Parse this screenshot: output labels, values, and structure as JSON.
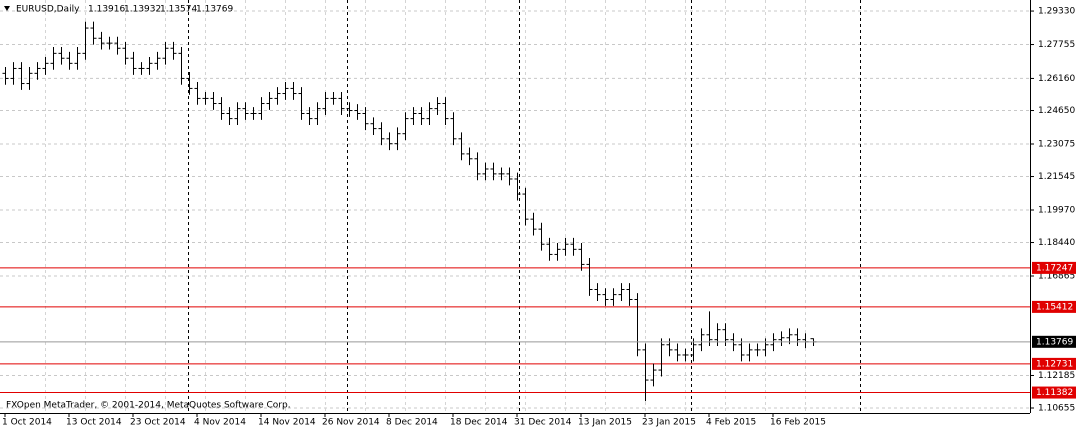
{
  "chart_data": {
    "type": "ohlc",
    "footer": "FXOpen MetaTrader, © 2001-2014, MetaQuotes Software Corp.",
    "categories": [
      "1 Oct 2014",
      null,
      null,
      null,
      null,
      null,
      null,
      null,
      "13 Oct 2014",
      null,
      null,
      null,
      null,
      null,
      null,
      null,
      "23 Oct 2014",
      null,
      null,
      null,
      null,
      null,
      null,
      null,
      "4 Nov 2014",
      null,
      null,
      null,
      null,
      null,
      null,
      null,
      "14 Nov 2014",
      null,
      null,
      null,
      null,
      null,
      null,
      null,
      "26 Nov 2014",
      null,
      null,
      null,
      null,
      null,
      null,
      null,
      "8 Dec 2014",
      null,
      null,
      null,
      null,
      null,
      null,
      null,
      "18 Dec 2014",
      null,
      null,
      null,
      null,
      null,
      null,
      null,
      "31 Dec 2014",
      null,
      null,
      null,
      null,
      null,
      null,
      null,
      "13 Jan 2015",
      null,
      null,
      null,
      null,
      null,
      null,
      null,
      "23 Jan 2015",
      null,
      null,
      null,
      null,
      null,
      null,
      null,
      "4 Feb 2015",
      null,
      null,
      null,
      null,
      null,
      null,
      null,
      "16 Feb 2015",
      null,
      null,
      null,
      null,
      null
    ],
    "series": [
      {
        "name": "EURUSD,Daily",
        "color": "#000000",
        "open": [
          1.264,
          1.2616,
          1.2663,
          1.2592,
          1.264,
          1.2663,
          1.2687,
          1.2734,
          1.2711,
          1.2687,
          1.2734,
          1.2853,
          1.2805,
          1.2782,
          1.2782,
          1.2758,
          1.2711,
          1.2663,
          1.2663,
          1.2687,
          1.2711,
          1.2758,
          1.2734,
          1.2616,
          1.2569,
          1.2522,
          1.2522,
          1.2498,
          1.2451,
          1.2427,
          1.2474,
          1.2451,
          1.2451,
          1.2498,
          1.2522,
          1.2545,
          1.2569,
          1.2545,
          1.2451,
          1.2427,
          1.2474,
          1.2522,
          1.2522,
          1.2474,
          1.2465,
          1.2451,
          1.2403,
          1.238,
          1.2332,
          1.2309,
          1.2356,
          1.2427,
          1.2451,
          1.2427,
          1.2474,
          1.2498,
          1.2427,
          1.2332,
          1.2261,
          1.2238,
          1.2167,
          1.219,
          1.2167,
          1.2167,
          1.2143,
          1.2072,
          1.1954,
          1.1907,
          1.1836,
          1.1788,
          1.1812,
          1.1836,
          1.1812,
          1.1741,
          1.1623,
          1.1599,
          1.1576,
          1.1599,
          1.1623,
          1.1576,
          1.1339,
          1.1197,
          1.1244,
          1.1363,
          1.1339,
          1.1315,
          1.1315,
          1.1363,
          1.141,
          1.1387,
          1.1434,
          1.1387,
          1.1363,
          1.1315,
          1.1339,
          1.1339,
          1.1363,
          1.1387,
          1.1396,
          1.141,
          1.1387,
          1.13916
        ],
        "high": [
          1.267,
          1.2693,
          1.2693,
          1.267,
          1.2693,
          1.2717,
          1.2764,
          1.2764,
          1.2741,
          1.2764,
          1.2883,
          1.2883,
          1.2835,
          1.2812,
          1.2812,
          1.2788,
          1.2741,
          1.2693,
          1.2717,
          1.2741,
          1.2788,
          1.2788,
          1.2764,
          1.2646,
          1.2599,
          1.2552,
          1.2552,
          1.2528,
          1.2481,
          1.2504,
          1.2504,
          1.2481,
          1.2528,
          1.2552,
          1.2575,
          1.2599,
          1.2599,
          1.2575,
          1.2481,
          1.2504,
          1.2552,
          1.2552,
          1.2552,
          1.2504,
          1.2495,
          1.2481,
          1.2433,
          1.241,
          1.2362,
          1.2386,
          1.2457,
          1.2481,
          1.2481,
          1.2504,
          1.2528,
          1.2528,
          1.2457,
          1.2362,
          1.2291,
          1.2268,
          1.222,
          1.222,
          1.2197,
          1.2197,
          1.2173,
          1.2102,
          1.1984,
          1.1937,
          1.1866,
          1.1842,
          1.1866,
          1.1866,
          1.1842,
          1.1771,
          1.1653,
          1.1629,
          1.1629,
          1.1653,
          1.1653,
          1.1606,
          1.1369,
          1.1274,
          1.1393,
          1.1393,
          1.1369,
          1.1345,
          1.1393,
          1.144,
          1.152,
          1.1464,
          1.1464,
          1.1417,
          1.1393,
          1.1369,
          1.1369,
          1.1393,
          1.1417,
          1.1426,
          1.144,
          1.144,
          1.1417,
          1.13932
        ],
        "low": [
          1.2586,
          1.2586,
          1.2562,
          1.2562,
          1.261,
          1.2633,
          1.2657,
          1.2681,
          1.2657,
          1.2657,
          1.2704,
          1.2775,
          1.2752,
          1.2752,
          1.2728,
          1.2681,
          1.2633,
          1.2633,
          1.2633,
          1.2657,
          1.2681,
          1.2704,
          1.2586,
          1.2539,
          1.2492,
          1.2492,
          1.2468,
          1.2421,
          1.2397,
          1.2397,
          1.2421,
          1.2421,
          1.2421,
          1.2468,
          1.2492,
          1.2515,
          1.2515,
          1.2421,
          1.2397,
          1.2397,
          1.2444,
          1.2492,
          1.2444,
          1.2435,
          1.2421,
          1.2373,
          1.235,
          1.2302,
          1.2279,
          1.2279,
          1.2326,
          1.2397,
          1.2397,
          1.2397,
          1.2444,
          1.2397,
          1.2302,
          1.2231,
          1.2208,
          1.2137,
          1.2137,
          1.2137,
          1.2137,
          1.2113,
          1.2042,
          1.1924,
          1.1877,
          1.1806,
          1.1758,
          1.1758,
          1.1782,
          1.1782,
          1.1711,
          1.1593,
          1.1569,
          1.1546,
          1.1546,
          1.1569,
          1.1546,
          1.1309,
          1.1098,
          1.1167,
          1.1214,
          1.1309,
          1.1285,
          1.1285,
          1.1285,
          1.1333,
          1.1357,
          1.1357,
          1.1357,
          1.1333,
          1.1285,
          1.1285,
          1.1309,
          1.1309,
          1.1333,
          1.1357,
          1.1366,
          1.1357,
          1.1347,
          1.13574
        ],
        "close": [
          1.2616,
          1.2663,
          1.2592,
          1.264,
          1.2663,
          1.2687,
          1.2734,
          1.2711,
          1.2687,
          1.2734,
          1.2853,
          1.2805,
          1.2782,
          1.2782,
          1.2758,
          1.2711,
          1.2663,
          1.2663,
          1.2687,
          1.2711,
          1.2758,
          1.2734,
          1.2616,
          1.2569,
          1.2522,
          1.2522,
          1.2498,
          1.2451,
          1.2427,
          1.2474,
          1.2451,
          1.2451,
          1.2498,
          1.2522,
          1.2545,
          1.2569,
          1.2545,
          1.2451,
          1.2427,
          1.2474,
          1.2522,
          1.2522,
          1.2474,
          1.2465,
          1.2451,
          1.2403,
          1.238,
          1.2332,
          1.2309,
          1.2356,
          1.2427,
          1.2451,
          1.2427,
          1.2474,
          1.2498,
          1.2427,
          1.2332,
          1.2261,
          1.2238,
          1.2167,
          1.219,
          1.2167,
          1.2167,
          1.2143,
          1.2072,
          1.1954,
          1.1907,
          1.1836,
          1.1788,
          1.1812,
          1.1836,
          1.1812,
          1.1741,
          1.1623,
          1.1599,
          1.1576,
          1.1599,
          1.1623,
          1.1576,
          1.1339,
          1.1197,
          1.1244,
          1.1363,
          1.1339,
          1.1315,
          1.1315,
          1.1363,
          1.141,
          1.1387,
          1.1434,
          1.1387,
          1.1363,
          1.1315,
          1.1339,
          1.1339,
          1.1363,
          1.1387,
          1.1396,
          1.141,
          1.1387,
          1.1377,
          1.13769
        ]
      }
    ],
    "levels": [
      1.17247,
      1.15412,
      1.12731,
      1.11382
    ],
    "level_color": "#e00000",
    "ylim": [
      1.1042,
      1.2985
    ],
    "yticks": [
      {
        "value": 1.2933,
        "label": "1.29330"
      },
      {
        "value": 1.27755,
        "label": "1.27755"
      },
      {
        "value": 1.2616,
        "label": "1.26160"
      },
      {
        "value": 1.2465,
        "label": "1.24650"
      },
      {
        "value": 1.23075,
        "label": "1.23075"
      },
      {
        "value": 1.21545,
        "label": "1.21545"
      },
      {
        "value": 1.1997,
        "label": "1.19970"
      },
      {
        "value": 1.1844,
        "label": "1.18440"
      },
      {
        "value": 1.16865,
        "label": "1.16865"
      },
      {
        "value": 1.12185,
        "label": "1.12185"
      },
      {
        "value": 1.10655,
        "label": "1.10655"
      }
    ],
    "grid": true
  }
}
